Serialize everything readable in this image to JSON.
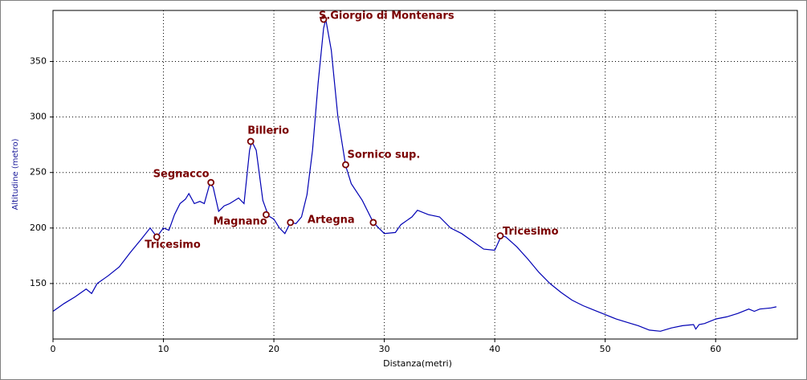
{
  "chart_data": {
    "type": "line",
    "x_label": "Distanza(metri)",
    "y_label": "Altitudine  (metro)",
    "xlim": [
      0,
      67.4
    ],
    "ylim": [
      100,
      396
    ],
    "xticks": [
      0,
      10,
      20,
      30,
      40,
      50,
      60
    ],
    "yticks": [
      150,
      200,
      250,
      300,
      350
    ],
    "grid": true,
    "series": [
      {
        "color": "#0000b4",
        "x": [
          0,
          1,
          2,
          3,
          3.5,
          4,
          5,
          6,
          7,
          8,
          8.8,
          9.4,
          10,
          10.5,
          11,
          11.5,
          12,
          12.3,
          12.8,
          13.3,
          13.7,
          14.2,
          14.5,
          15,
          15.5,
          16,
          16.8,
          17.3,
          17.8,
          18,
          18.4,
          19,
          19.5,
          20,
          20.5,
          21,
          21.5,
          22,
          22.5,
          23,
          23.5,
          24,
          24.5,
          24.7,
          25.2,
          25.8,
          26.5,
          27,
          28,
          29,
          29.5,
          30,
          31,
          31.5,
          32.5,
          33,
          34,
          35,
          36,
          37,
          38,
          39,
          40,
          40.6,
          41,
          42,
          43,
          44,
          45,
          46,
          47,
          48,
          49,
          50,
          51,
          52,
          53,
          54,
          55,
          56,
          57,
          58,
          58.2,
          58.5,
          59,
          60,
          61,
          62,
          63,
          63.5,
          64,
          65,
          65.5
        ],
        "values": [
          125,
          132,
          138,
          145,
          141,
          150,
          157,
          165,
          178,
          190,
          200,
          192,
          200,
          198,
          212,
          222,
          226,
          231,
          222,
          224,
          222,
          240,
          237,
          215,
          220,
          222,
          227,
          222,
          270,
          278,
          270,
          225,
          211,
          208,
          200,
          195,
          205,
          204,
          210,
          230,
          270,
          330,
          380,
          388,
          360,
          300,
          256,
          240,
          225,
          205,
          200,
          195,
          196,
          203,
          210,
          216,
          212,
          210,
          200,
          195,
          188,
          181,
          180,
          193,
          192,
          183,
          172,
          160,
          150,
          142,
          135,
          130,
          126,
          122,
          118,
          115,
          112,
          108,
          107,
          110,
          112,
          113,
          109,
          113,
          114,
          118,
          120,
          123,
          127,
          125,
          127,
          128,
          129
        ]
      }
    ],
    "waypoints": [
      {
        "label": "Tricesimo",
        "x": 9.4,
        "y": 192
      },
      {
        "label": "Segnacco",
        "x": 14.3,
        "y": 241
      },
      {
        "label": "Billerio",
        "x": 17.9,
        "y": 278
      },
      {
        "label": "Magnano",
        "x": 19.3,
        "y": 212
      },
      {
        "label": null,
        "x": 21.5,
        "y": 205
      },
      {
        "label": "S.Giorgio di Montenars",
        "x": 24.5,
        "y": 388
      },
      {
        "label": "Sornico sup.",
        "x": 26.5,
        "y": 257
      },
      {
        "label": "Artegna",
        "x": 29.0,
        "y": 205
      },
      {
        "label": "Tricesimo",
        "x": 40.5,
        "y": 193
      }
    ]
  }
}
